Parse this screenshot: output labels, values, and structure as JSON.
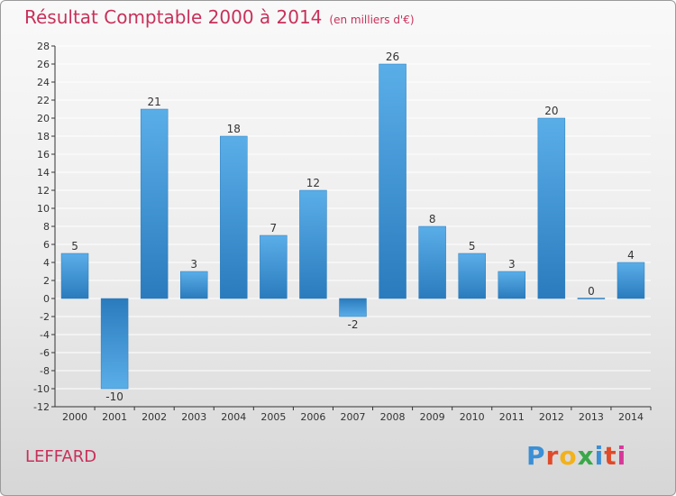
{
  "title": "Résultat Comptable 2000 à 2014",
  "unit": "(en milliers d'€)",
  "commune": "LEFFARD",
  "brand": {
    "letters": [
      "P",
      "r",
      "o",
      "x",
      "i",
      "t",
      "i"
    ],
    "colors": [
      "#3a8fd6",
      "#e04a2a",
      "#f2b21c",
      "#3aa84a",
      "#3a8fd6",
      "#e04a2a",
      "#d8379a"
    ]
  },
  "colors": {
    "bar_top": "#5aaee8",
    "bar_bottom": "#2a7bbd",
    "axis": "#333333",
    "grid": "#ffffff"
  },
  "chart_data": {
    "type": "bar",
    "categories": [
      "2000",
      "2001",
      "2002",
      "2003",
      "2004",
      "2005",
      "2006",
      "2007",
      "2008",
      "2009",
      "2010",
      "2011",
      "2012",
      "2013",
      "2014"
    ],
    "values": [
      5,
      -10,
      21,
      3,
      18,
      7,
      12,
      -2,
      26,
      8,
      5,
      3,
      20,
      0,
      4
    ],
    "ylim": [
      -12,
      28
    ],
    "ytick_step": 2,
    "grid": true
  }
}
